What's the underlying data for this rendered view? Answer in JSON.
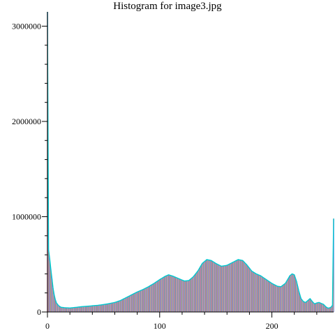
{
  "chart_data": {
    "type": "bar",
    "title": "Histogram for image3.jpg",
    "xlabel": "",
    "ylabel": "",
    "xlim": [
      0,
      255
    ],
    "ylim": [
      0,
      3150000
    ],
    "x_ticks": [
      0,
      100,
      200
    ],
    "y_ticks": [
      0,
      1000000,
      2000000,
      3000000
    ],
    "y_tick_labels": [
      "0",
      "1000000",
      "2000000",
      "3000000"
    ],
    "grid": false,
    "legend": "none",
    "channels": [
      {
        "color": "#ff0000"
      },
      {
        "color": "#00aa00"
      },
      {
        "color": "#0000ff"
      }
    ],
    "outline_color": "#00c8d0",
    "bins": [
      [
        0,
        3150000
      ],
      [
        1,
        650000
      ],
      [
        2,
        560000
      ],
      [
        3,
        450000
      ],
      [
        4,
        350000
      ],
      [
        5,
        250000
      ],
      [
        6,
        180000
      ],
      [
        7,
        130000
      ],
      [
        8,
        95000
      ],
      [
        10,
        65000
      ],
      [
        12,
        50000
      ],
      [
        15,
        45000
      ],
      [
        20,
        42000
      ],
      [
        25,
        48000
      ],
      [
        30,
        55000
      ],
      [
        35,
        60000
      ],
      [
        40,
        65000
      ],
      [
        45,
        70000
      ],
      [
        50,
        78000
      ],
      [
        55,
        88000
      ],
      [
        60,
        100000
      ],
      [
        65,
        120000
      ],
      [
        70,
        150000
      ],
      [
        75,
        180000
      ],
      [
        80,
        210000
      ],
      [
        85,
        235000
      ],
      [
        90,
        265000
      ],
      [
        95,
        300000
      ],
      [
        100,
        340000
      ],
      [
        105,
        375000
      ],
      [
        108,
        390000
      ],
      [
        112,
        375000
      ],
      [
        118,
        345000
      ],
      [
        122,
        325000
      ],
      [
        126,
        330000
      ],
      [
        130,
        370000
      ],
      [
        134,
        430000
      ],
      [
        138,
        510000
      ],
      [
        142,
        550000
      ],
      [
        146,
        540000
      ],
      [
        150,
        510000
      ],
      [
        155,
        480000
      ],
      [
        160,
        490000
      ],
      [
        165,
        520000
      ],
      [
        170,
        550000
      ],
      [
        174,
        540000
      ],
      [
        178,
        490000
      ],
      [
        182,
        430000
      ],
      [
        186,
        400000
      ],
      [
        190,
        380000
      ],
      [
        195,
        340000
      ],
      [
        200,
        300000
      ],
      [
        205,
        270000
      ],
      [
        208,
        265000
      ],
      [
        212,
        300000
      ],
      [
        216,
        380000
      ],
      [
        218,
        400000
      ],
      [
        220,
        390000
      ],
      [
        222,
        320000
      ],
      [
        224,
        220000
      ],
      [
        226,
        140000
      ],
      [
        228,
        110000
      ],
      [
        230,
        100000
      ],
      [
        232,
        120000
      ],
      [
        234,
        140000
      ],
      [
        236,
        110000
      ],
      [
        238,
        85000
      ],
      [
        240,
        95000
      ],
      [
        242,
        100000
      ],
      [
        244,
        90000
      ],
      [
        246,
        80000
      ],
      [
        248,
        55000
      ],
      [
        250,
        40000
      ],
      [
        252,
        45000
      ],
      [
        253,
        55000
      ],
      [
        254,
        70000
      ],
      [
        255,
        980000
      ]
    ]
  }
}
